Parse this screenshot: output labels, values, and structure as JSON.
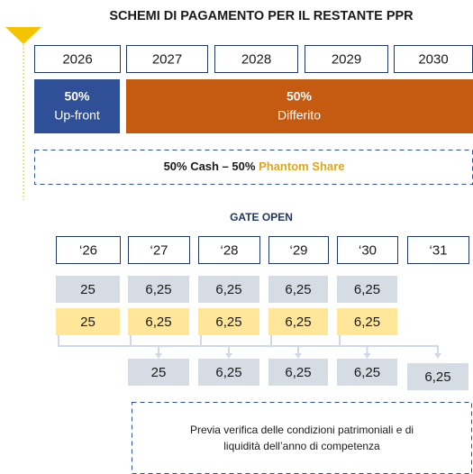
{
  "title": "SCHEMI DI PAGAMENTO PER IL RESTANTE PPR",
  "years": [
    "2026",
    "2027",
    "2028",
    "2029",
    "2030"
  ],
  "upfront": {
    "percent": "50%",
    "label": "Up-front"
  },
  "deferred": {
    "percent": "50%",
    "label": "Differito"
  },
  "cash_note": {
    "cash": "50% Cash – 50% ",
    "phantom": "Phantom Share"
  },
  "gate_title": "GATE OPEN",
  "short_years": [
    "‘26",
    "‘27",
    "‘28",
    "‘29",
    "‘30",
    "‘31"
  ],
  "cash_row": [
    "25",
    "6,25",
    "6,25",
    "6,25",
    "6,25"
  ],
  "phantom_row": [
    "25",
    "6,25",
    "6,25",
    "6,25",
    "6,25"
  ],
  "released_row": [
    "25",
    "6,25",
    "6,25",
    "6,25",
    "6,25"
  ],
  "note": [
    "Previa verifica delle condizioni patrimoniali e di",
    "liquidità dell’anno di competenza"
  ]
}
